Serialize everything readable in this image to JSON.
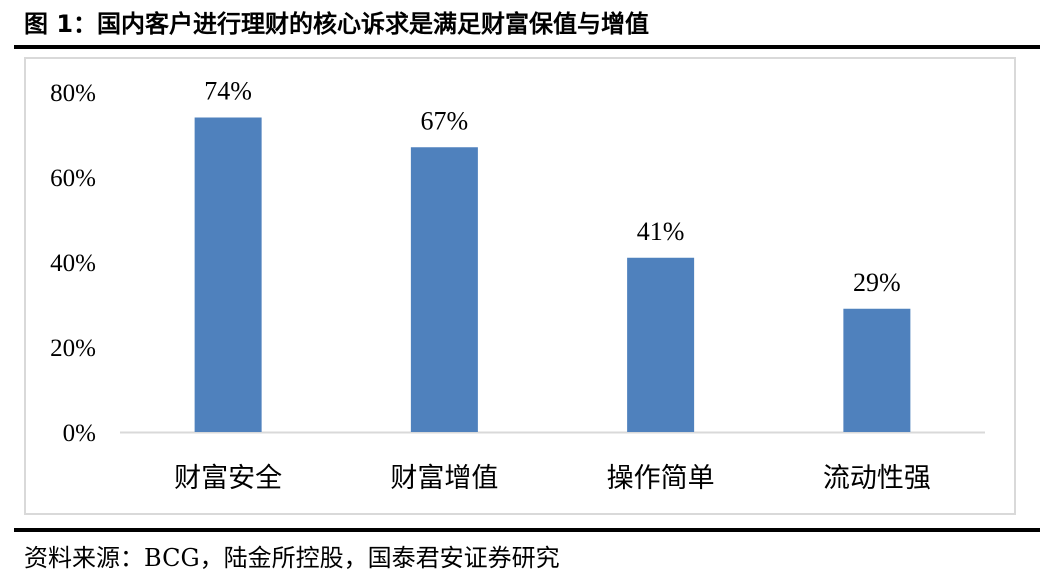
{
  "figure": {
    "title": "图 1：国内客户进行理财的核心诉求是满足财富保值与增值",
    "source": "资料来源：BCG，陆金所控股，国泰君安证券研究"
  },
  "chart_data": {
    "type": "bar",
    "categories": [
      "财富安全",
      "财富增值",
      "操作简单",
      "流动性强"
    ],
    "values": [
      74,
      67,
      41,
      29
    ],
    "data_labels": [
      "74%",
      "67%",
      "41%",
      "29%"
    ],
    "yticks": [
      0,
      20,
      40,
      60,
      80
    ],
    "ytick_labels": [
      "0%",
      "20%",
      "40%",
      "60%",
      "80%"
    ],
    "ylim": [
      0,
      80
    ],
    "grid": false,
    "legend": "none",
    "bar_color": "#4f81bd",
    "axis_color": "#d9d9d9"
  }
}
